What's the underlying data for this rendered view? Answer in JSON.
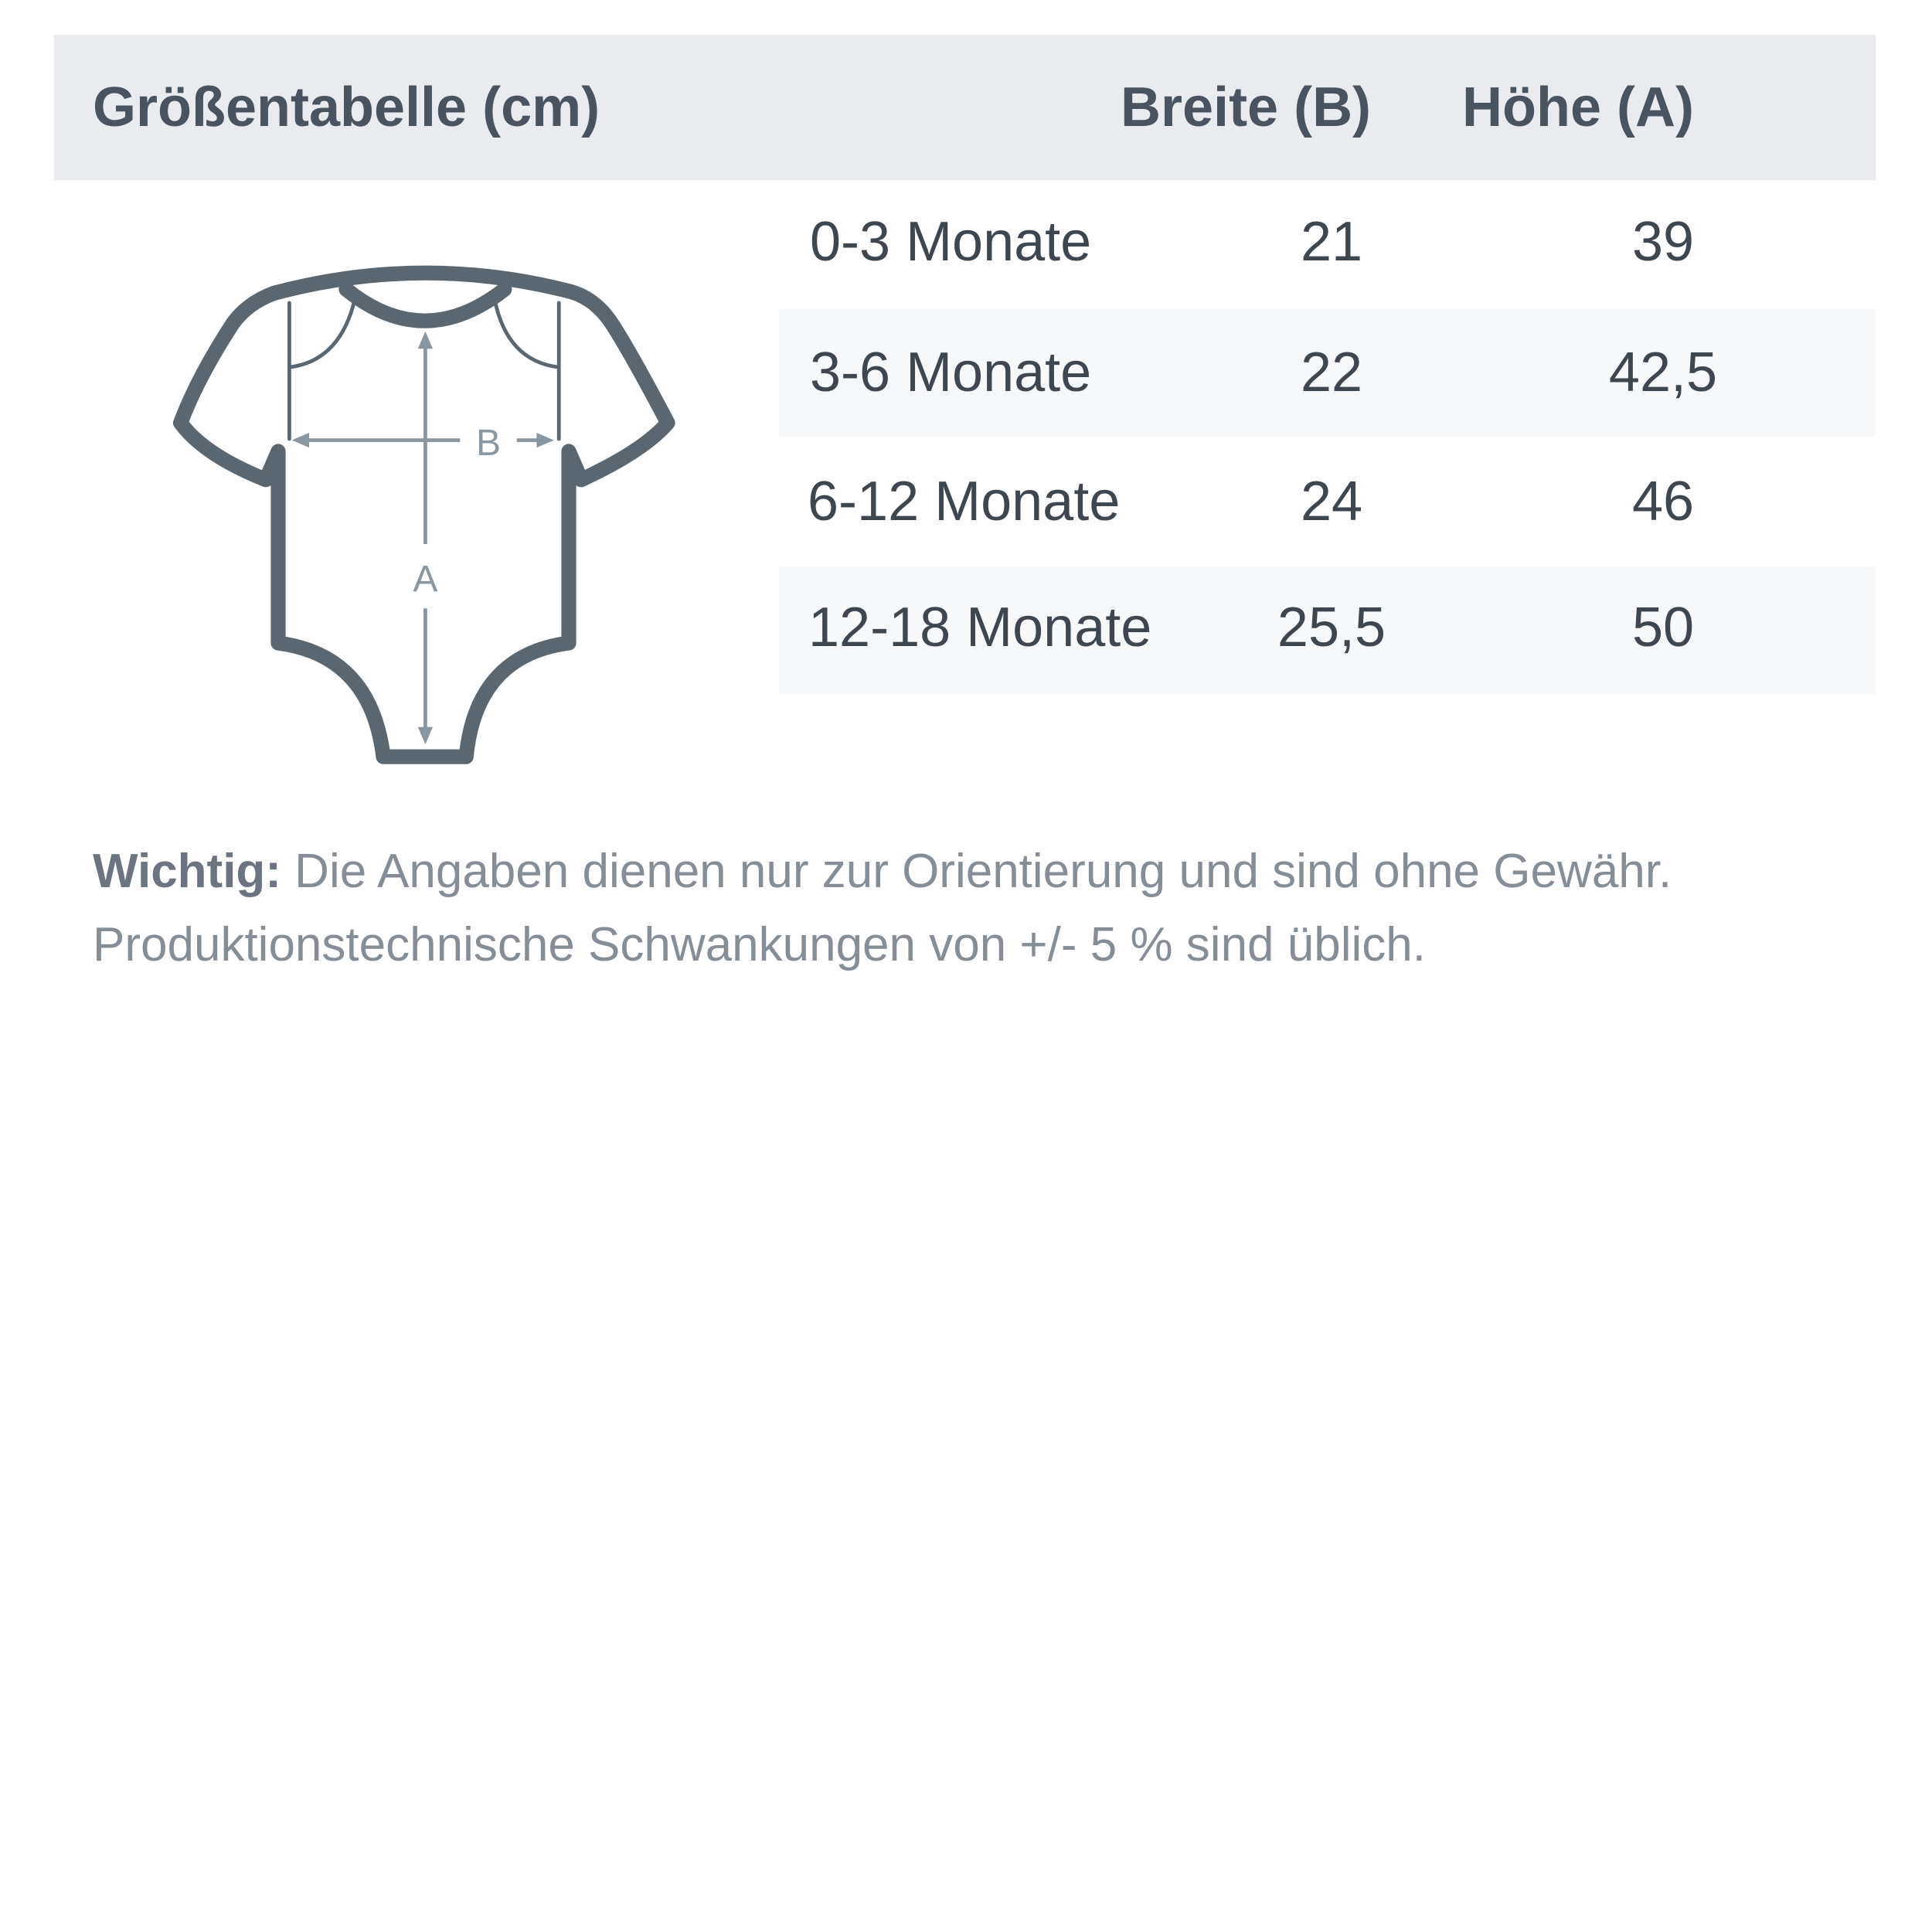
{
  "header": {
    "title": "Größentabelle (cm)",
    "col_width": "Breite (B)",
    "col_height": "Höhe (A)"
  },
  "rows": [
    {
      "size": "0-3 Monate",
      "width": "21",
      "height": "39"
    },
    {
      "size": "3-6 Monate",
      "width": "22",
      "height": "42,5"
    },
    {
      "size": "6-12 Monate",
      "width": "24",
      "height": "46"
    },
    {
      "size": "12-18 Monate",
      "width": "25,5",
      "height": "50"
    }
  ],
  "diagram": {
    "label_b": "B",
    "label_a": "A",
    "outline_color": "#5a6670",
    "arrow_color": "#8a96a0"
  },
  "note": {
    "label": "Wichtig:",
    "line1": " Die Angaben dienen nur zur Orientierung und sind ohne Gewähr.",
    "line2": "Produktionstechnische Schwankungen von +/- 5 % sind üblich."
  }
}
